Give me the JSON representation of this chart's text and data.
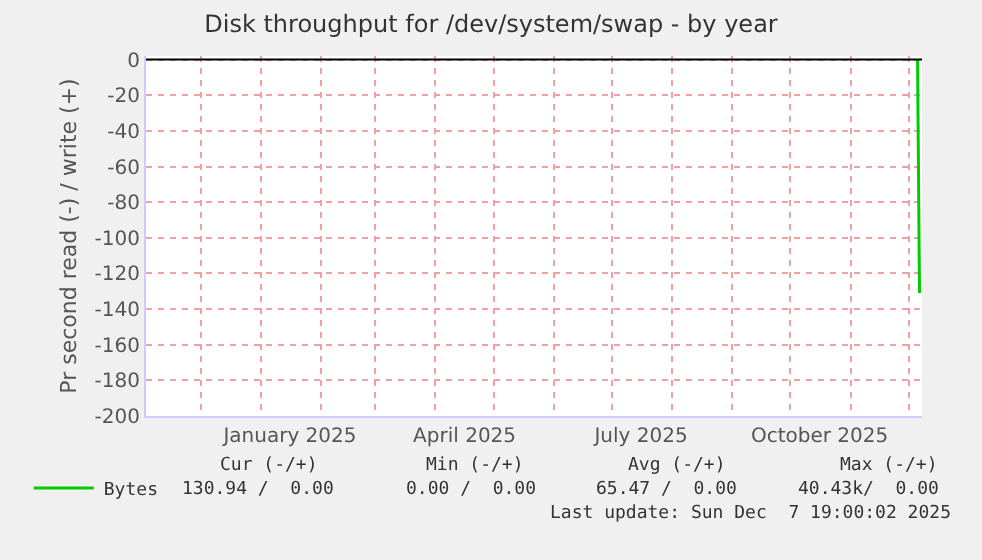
{
  "chart_data": {
    "type": "line",
    "title": "Disk throughput for /dev/system/swap - by year",
    "ylabel": "Pr second read (-) / write (+)",
    "xlim": [
      "2024-11-02T19:00",
      "2025-12-07T19:00"
    ],
    "xticks": [
      {
        "value": "2025-01-16",
        "label": "January 2025"
      },
      {
        "value": "2025-04-16",
        "label": "April 2025"
      },
      {
        "value": "2025-07-16",
        "label": "July 2025"
      },
      {
        "value": "2025-10-16",
        "label": "October 2025"
      }
    ],
    "ylim": [
      -200,
      2
    ],
    "yticks": [
      -200,
      -180,
      -160,
      -140,
      -120,
      -100,
      -80,
      -60,
      -40,
      -20,
      0
    ],
    "series": [
      {
        "name": "Bytes",
        "color": "#00cc00",
        "x": [
          "2025-12-05T12:00",
          "2025-12-06T12:00"
        ],
        "values": [
          0,
          -131
        ]
      }
    ],
    "ref_lines": [
      {
        "axis": "y",
        "value": 0,
        "color": "#000000"
      }
    ],
    "grid": true,
    "legend": "bottom left",
    "line_style": "solid",
    "marker": "none",
    "annotations": [
      "Cur (-/+)",
      "Min (-/+)",
      "Avg (-/+)",
      "Max (-/+)",
      "130.94 /  0.00",
      "0.00 /  0.00",
      "65.47 /  0.00",
      "40.43k/  0.00",
      "Last update: Sun Dec  7 19:00:02 2025"
    ]
  }
}
